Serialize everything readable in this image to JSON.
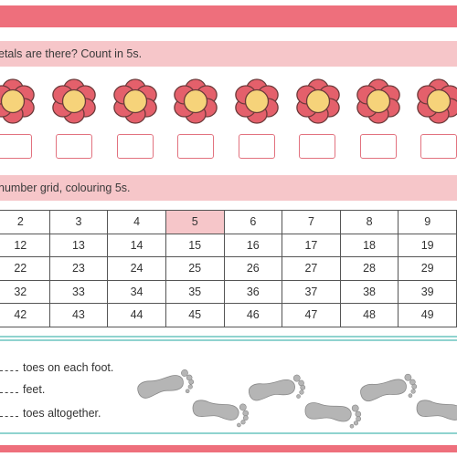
{
  "sections": {
    "flowers_prompt": "etals are there? Count in 5s.",
    "grid_prompt": " number grid, colouring 5s."
  },
  "grid": {
    "rows": [
      [
        "2",
        "3",
        "4",
        "5",
        "6",
        "7",
        "8",
        "9"
      ],
      [
        "12",
        "13",
        "14",
        "15",
        "16",
        "17",
        "18",
        "19"
      ],
      [
        "22",
        "23",
        "24",
        "25",
        "26",
        "27",
        "28",
        "29"
      ],
      [
        "32",
        "33",
        "34",
        "35",
        "36",
        "37",
        "38",
        "39"
      ],
      [
        "42",
        "43",
        "44",
        "45",
        "46",
        "47",
        "48",
        "49"
      ]
    ],
    "shaded_value": "5"
  },
  "feet": {
    "line1": "toes on each foot.",
    "line2": "feet.",
    "line3": "toes altogether."
  },
  "colors": {
    "accent": "#ee6f7c",
    "header_bg": "#f6c6c9",
    "petal": "#e4606b",
    "flower_center": "#f6d37a",
    "divider": "#8fd3cf",
    "footprint": "#b5b5b5"
  }
}
